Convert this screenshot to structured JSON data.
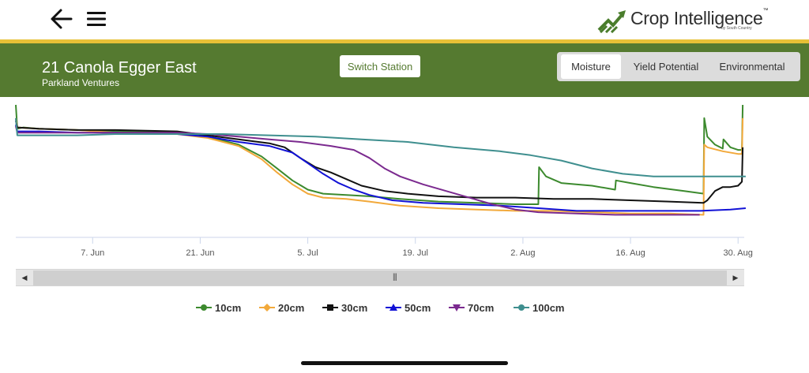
{
  "header": {
    "back_icon": "back-arrow-icon",
    "menu_icon": "hamburger-menu-icon",
    "logo_text": "Crop Intelligence",
    "logo_tm": "™",
    "logo_subtext": "by South Country"
  },
  "station": {
    "title": "21 Canola Egger East",
    "subtitle": "Parkland Ventures",
    "switch_label": "Switch Station"
  },
  "tabs": [
    {
      "label": "Moisture",
      "active": true
    },
    {
      "label": "Yield Potential",
      "active": false
    },
    {
      "label": "Environmental",
      "active": false
    }
  ],
  "colors": {
    "brand_green": "#557a30",
    "accent_gold": "#e7c037"
  },
  "chart_data": {
    "type": "line",
    "x_tick_labels": [
      "7. Jun",
      "21. Jun",
      "5. Jul",
      "19. Jul",
      "2. Aug",
      "16. Aug",
      "30. Aug"
    ],
    "x_tick_days": [
      7,
      21,
      35,
      49,
      63,
      77,
      91
    ],
    "x_range_days": [
      -3,
      91.8
    ],
    "y_range": [
      0,
      100
    ],
    "grid": false,
    "legend_position": "bottom",
    "series": [
      {
        "name": "10cm",
        "color": "#3c8a2e",
        "marker": "circle",
        "points": [
          [
            -3,
            100
          ],
          [
            -2.8,
            82
          ],
          [
            -2,
            83
          ],
          [
            0,
            82
          ],
          [
            5,
            81
          ],
          [
            10,
            80
          ],
          [
            18,
            79
          ],
          [
            22,
            76
          ],
          [
            26,
            70
          ],
          [
            29,
            61
          ],
          [
            31,
            52
          ],
          [
            33,
            43
          ],
          [
            35,
            36
          ],
          [
            37,
            33
          ],
          [
            40,
            32
          ],
          [
            43,
            31
          ],
          [
            47,
            29
          ],
          [
            52,
            27
          ],
          [
            57,
            26
          ],
          [
            62,
            25
          ],
          [
            65,
            25
          ],
          [
            65.1,
            53
          ],
          [
            66,
            46
          ],
          [
            68,
            41
          ],
          [
            72,
            39
          ],
          [
            75,
            36
          ],
          [
            75.1,
            43
          ],
          [
            77,
            41
          ],
          [
            80,
            38
          ],
          [
            84,
            35
          ],
          [
            86.5,
            33
          ],
          [
            86.6,
            90
          ],
          [
            87,
            76
          ],
          [
            88,
            70
          ],
          [
            89,
            67
          ],
          [
            89.1,
            74
          ],
          [
            90,
            68
          ],
          [
            91,
            66
          ],
          [
            91.5,
            66
          ],
          [
            91.6,
            100
          ]
        ]
      },
      {
        "name": "20cm",
        "color": "#f2a93b",
        "marker": "diamond",
        "points": [
          [
            -3,
            90
          ],
          [
            -2.8,
            83
          ],
          [
            0,
            82
          ],
          [
            5,
            81
          ],
          [
            10,
            79
          ],
          [
            18,
            78
          ],
          [
            22,
            75
          ],
          [
            26,
            69
          ],
          [
            29,
            59
          ],
          [
            31,
            49
          ],
          [
            33,
            40
          ],
          [
            35,
            33
          ],
          [
            37,
            30
          ],
          [
            40,
            29
          ],
          [
            43,
            27
          ],
          [
            47,
            24
          ],
          [
            52,
            22
          ],
          [
            57,
            21
          ],
          [
            62,
            20
          ],
          [
            67,
            20
          ],
          [
            72,
            19
          ],
          [
            77,
            18
          ],
          [
            82,
            18
          ],
          [
            86.5,
            17
          ],
          [
            86.6,
            70
          ],
          [
            87,
            68
          ],
          [
            89,
            65
          ],
          [
            91,
            63
          ],
          [
            91.5,
            63
          ],
          [
            91.6,
            90
          ]
        ]
      },
      {
        "name": "30cm",
        "color": "#111111",
        "marker": "square",
        "points": [
          [
            -3,
            88
          ],
          [
            -2.8,
            83
          ],
          [
            0,
            82
          ],
          [
            5,
            81
          ],
          [
            10,
            81
          ],
          [
            18,
            80
          ],
          [
            22,
            77
          ],
          [
            26,
            74
          ],
          [
            30,
            71
          ],
          [
            32,
            68
          ],
          [
            34,
            60
          ],
          [
            36,
            53
          ],
          [
            38,
            49
          ],
          [
            40,
            44
          ],
          [
            42,
            39
          ],
          [
            45,
            35
          ],
          [
            48,
            33
          ],
          [
            52,
            31
          ],
          [
            57,
            30
          ],
          [
            62,
            30
          ],
          [
            67,
            29
          ],
          [
            72,
            29
          ],
          [
            77,
            28
          ],
          [
            82,
            27
          ],
          [
            86.5,
            26
          ],
          [
            87,
            28
          ],
          [
            88,
            35
          ],
          [
            89,
            38
          ],
          [
            90,
            38
          ],
          [
            91,
            39
          ],
          [
            91.5,
            42
          ],
          [
            91.6,
            68
          ]
        ]
      },
      {
        "name": "50cm",
        "color": "#1212d6",
        "marker": "triangle",
        "points": [
          [
            -3,
            85
          ],
          [
            -2.8,
            80
          ],
          [
            0,
            80
          ],
          [
            5,
            79
          ],
          [
            10,
            79
          ],
          [
            18,
            78
          ],
          [
            22,
            76
          ],
          [
            26,
            72
          ],
          [
            30,
            69
          ],
          [
            33,
            64
          ],
          [
            35,
            56
          ],
          [
            37,
            48
          ],
          [
            39,
            41
          ],
          [
            41,
            36
          ],
          [
            43,
            32
          ],
          [
            46,
            28
          ],
          [
            50,
            26
          ],
          [
            55,
            25
          ],
          [
            60,
            24
          ],
          [
            65,
            22
          ],
          [
            70,
            20
          ],
          [
            75,
            20
          ],
          [
            80,
            20
          ],
          [
            86,
            20
          ],
          [
            90,
            21
          ],
          [
            92,
            22
          ]
        ]
      },
      {
        "name": "70cm",
        "color": "#7b2a8f",
        "marker": "triangle-down",
        "points": [
          [
            -3,
            84
          ],
          [
            -2.8,
            79
          ],
          [
            0,
            79
          ],
          [
            5,
            79
          ],
          [
            10,
            79
          ],
          [
            18,
            79
          ],
          [
            22,
            78
          ],
          [
            26,
            76
          ],
          [
            30,
            74
          ],
          [
            34,
            72
          ],
          [
            38,
            69
          ],
          [
            41,
            66
          ],
          [
            43,
            60
          ],
          [
            45,
            52
          ],
          [
            47,
            46
          ],
          [
            50,
            40
          ],
          [
            53,
            35
          ],
          [
            56,
            30
          ],
          [
            59,
            25
          ],
          [
            62,
            21
          ],
          [
            65,
            19
          ],
          [
            70,
            18
          ],
          [
            75,
            17
          ],
          [
            80,
            17
          ],
          [
            86,
            17
          ]
        ]
      },
      {
        "name": "100cm",
        "color": "#3f8f8f",
        "marker": "circle",
        "points": [
          [
            -3,
            90
          ],
          [
            -2.8,
            77
          ],
          [
            0,
            77
          ],
          [
            5,
            77
          ],
          [
            10,
            78
          ],
          [
            18,
            78
          ],
          [
            24,
            78
          ],
          [
            30,
            77
          ],
          [
            36,
            76
          ],
          [
            42,
            74
          ],
          [
            48,
            72
          ],
          [
            54,
            68
          ],
          [
            60,
            65
          ],
          [
            64,
            62
          ],
          [
            68,
            58
          ],
          [
            72,
            52
          ],
          [
            76,
            48
          ],
          [
            80,
            46
          ],
          [
            84,
            46
          ],
          [
            86,
            46
          ],
          [
            88,
            46
          ],
          [
            92,
            46
          ]
        ]
      }
    ]
  }
}
